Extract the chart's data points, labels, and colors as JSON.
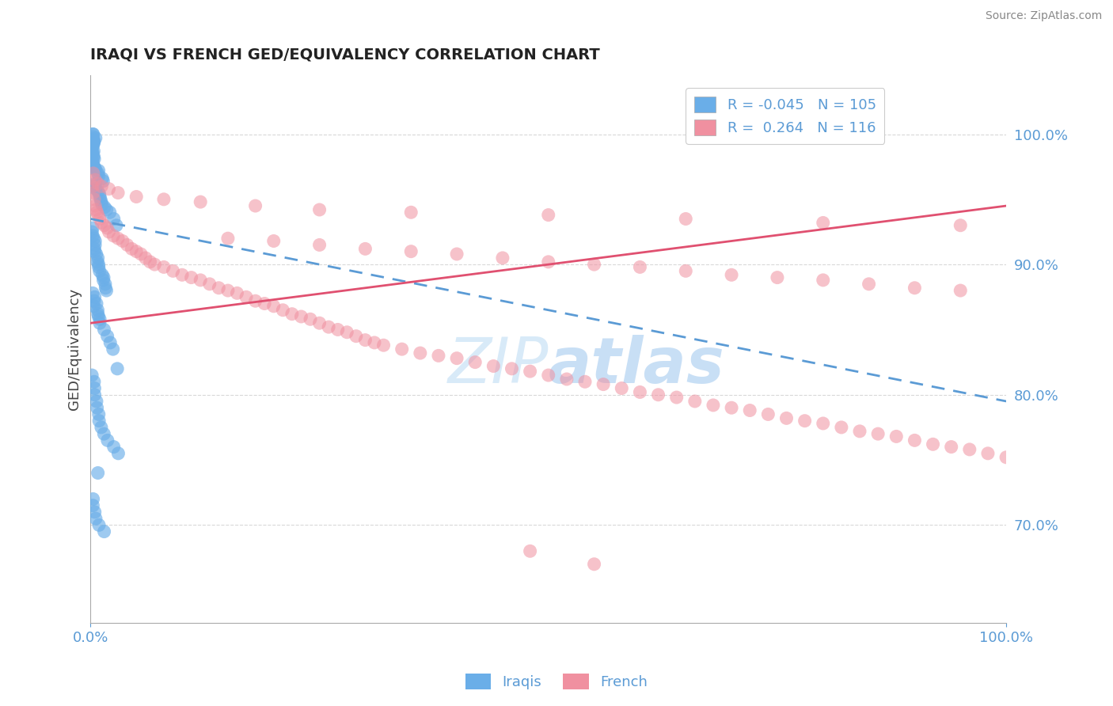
{
  "title": "IRAQI VS FRENCH GED/EQUIVALENCY CORRELATION CHART",
  "source": "Source: ZipAtlas.com",
  "ylabel": "GED/Equivalency",
  "ytick_labels": [
    "70.0%",
    "80.0%",
    "90.0%",
    "100.0%"
  ],
  "ytick_values": [
    0.7,
    0.8,
    0.9,
    1.0
  ],
  "xtick_labels": [
    "0.0%",
    "100.0%"
  ],
  "xtick_values": [
    0.0,
    1.0
  ],
  "xlim": [
    0.0,
    1.0
  ],
  "ylim": [
    0.625,
    1.045
  ],
  "R_iraqi": -0.045,
  "N_iraqi": 105,
  "R_french": 0.264,
  "N_french": 116,
  "iraqi_color": "#6aaee8",
  "french_color": "#f090a0",
  "bg_color": "#ffffff",
  "title_color": "#222222",
  "axis_color": "#5b9bd5",
  "watermark_color": "#d8eaf8",
  "trend_blue": "#5b9bd5",
  "trend_pink": "#e05070",
  "grid_color": "#d0d0d0",
  "seed": 42,
  "iraqi_points_x": [
    0.002,
    0.003,
    0.002,
    0.004,
    0.003,
    0.001,
    0.002,
    0.003,
    0.004,
    0.002,
    0.003,
    0.002,
    0.001,
    0.003,
    0.002,
    0.004,
    0.003,
    0.002,
    0.001,
    0.003,
    0.002,
    0.003,
    0.004,
    0.002,
    0.003,
    0.001,
    0.002,
    0.003,
    0.004,
    0.005,
    0.006,
    0.007,
    0.008,
    0.01,
    0.012,
    0.015,
    0.005,
    0.006,
    0.007,
    0.008,
    0.009,
    0.01,
    0.011,
    0.012,
    0.014,
    0.016,
    0.018,
    0.02,
    0.025,
    0.03,
    0.002,
    0.002,
    0.003,
    0.003,
    0.004,
    0.004,
    0.005,
    0.005,
    0.006,
    0.007,
    0.008,
    0.009,
    0.01,
    0.011,
    0.012,
    0.013,
    0.014,
    0.015,
    0.016,
    0.018,
    0.002,
    0.003,
    0.004,
    0.005,
    0.006,
    0.007,
    0.008,
    0.009,
    0.01,
    0.012,
    0.015,
    0.018,
    0.02,
    0.025,
    0.03,
    0.002,
    0.003,
    0.004,
    0.005,
    0.006,
    0.007,
    0.008,
    0.01,
    0.012,
    0.015,
    0.02,
    0.025,
    0.03,
    0.008,
    0.003,
    0.004,
    0.005,
    0.006,
    0.01,
    0.015
  ],
  "iraqi_points_y": [
    1.0,
    1.0,
    0.998,
    0.997,
    0.996,
    0.995,
    0.995,
    0.994,
    0.993,
    0.992,
    0.991,
    0.99,
    0.99,
    0.989,
    0.988,
    0.987,
    0.986,
    0.986,
    0.985,
    0.984,
    0.983,
    0.982,
    0.981,
    0.98,
    0.979,
    0.978,
    0.977,
    0.976,
    0.975,
    0.974,
    0.973,
    0.972,
    0.97,
    0.968,
    0.966,
    0.964,
    0.962,
    0.96,
    0.958,
    0.956,
    0.954,
    0.952,
    0.95,
    0.948,
    0.946,
    0.944,
    0.942,
    0.94,
    0.935,
    0.93,
    0.928,
    0.925,
    0.922,
    0.92,
    0.918,
    0.915,
    0.912,
    0.91,
    0.908,
    0.905,
    0.902,
    0.9,
    0.898,
    0.895,
    0.892,
    0.89,
    0.888,
    0.885,
    0.882,
    0.88,
    0.878,
    0.875,
    0.872,
    0.87,
    0.868,
    0.865,
    0.862,
    0.86,
    0.858,
    0.855,
    0.85,
    0.845,
    0.84,
    0.835,
    0.82,
    0.815,
    0.81,
    0.805,
    0.8,
    0.795,
    0.79,
    0.785,
    0.78,
    0.775,
    0.77,
    0.765,
    0.76,
    0.755,
    0.74,
    0.72,
    0.715,
    0.71,
    0.705,
    0.7,
    0.695
  ],
  "french_points_x": [
    0.002,
    0.003,
    0.004,
    0.005,
    0.006,
    0.007,
    0.008,
    0.01,
    0.012,
    0.015,
    0.018,
    0.02,
    0.025,
    0.03,
    0.035,
    0.04,
    0.045,
    0.05,
    0.055,
    0.06,
    0.065,
    0.07,
    0.08,
    0.09,
    0.1,
    0.11,
    0.12,
    0.13,
    0.14,
    0.15,
    0.16,
    0.17,
    0.18,
    0.19,
    0.2,
    0.21,
    0.22,
    0.23,
    0.24,
    0.25,
    0.26,
    0.27,
    0.28,
    0.29,
    0.3,
    0.31,
    0.32,
    0.34,
    0.36,
    0.38,
    0.4,
    0.42,
    0.44,
    0.46,
    0.48,
    0.5,
    0.52,
    0.54,
    0.56,
    0.58,
    0.6,
    0.62,
    0.64,
    0.66,
    0.68,
    0.7,
    0.72,
    0.74,
    0.76,
    0.78,
    0.8,
    0.82,
    0.84,
    0.86,
    0.88,
    0.9,
    0.92,
    0.94,
    0.96,
    0.98,
    1.0,
    0.15,
    0.2,
    0.25,
    0.3,
    0.35,
    0.4,
    0.45,
    0.5,
    0.55,
    0.6,
    0.65,
    0.7,
    0.75,
    0.8,
    0.85,
    0.9,
    0.95,
    0.003,
    0.005,
    0.008,
    0.012,
    0.02,
    0.03,
    0.05,
    0.08,
    0.12,
    0.18,
    0.25,
    0.35,
    0.5,
    0.65,
    0.8,
    0.95,
    0.48,
    0.55
  ],
  "french_points_y": [
    0.96,
    0.955,
    0.95,
    0.945,
    0.942,
    0.94,
    0.938,
    0.935,
    0.932,
    0.93,
    0.928,
    0.925,
    0.922,
    0.92,
    0.918,
    0.915,
    0.912,
    0.91,
    0.908,
    0.905,
    0.902,
    0.9,
    0.898,
    0.895,
    0.892,
    0.89,
    0.888,
    0.885,
    0.882,
    0.88,
    0.878,
    0.875,
    0.872,
    0.87,
    0.868,
    0.865,
    0.862,
    0.86,
    0.858,
    0.855,
    0.852,
    0.85,
    0.848,
    0.845,
    0.842,
    0.84,
    0.838,
    0.835,
    0.832,
    0.83,
    0.828,
    0.825,
    0.822,
    0.82,
    0.818,
    0.815,
    0.812,
    0.81,
    0.808,
    0.805,
    0.802,
    0.8,
    0.798,
    0.795,
    0.792,
    0.79,
    0.788,
    0.785,
    0.782,
    0.78,
    0.778,
    0.775,
    0.772,
    0.77,
    0.768,
    0.765,
    0.762,
    0.76,
    0.758,
    0.755,
    0.752,
    0.92,
    0.918,
    0.915,
    0.912,
    0.91,
    0.908,
    0.905,
    0.902,
    0.9,
    0.898,
    0.895,
    0.892,
    0.89,
    0.888,
    0.885,
    0.882,
    0.88,
    0.97,
    0.965,
    0.962,
    0.96,
    0.958,
    0.955,
    0.952,
    0.95,
    0.948,
    0.945,
    0.942,
    0.94,
    0.938,
    0.935,
    0.932,
    0.93,
    0.68,
    0.67
  ]
}
